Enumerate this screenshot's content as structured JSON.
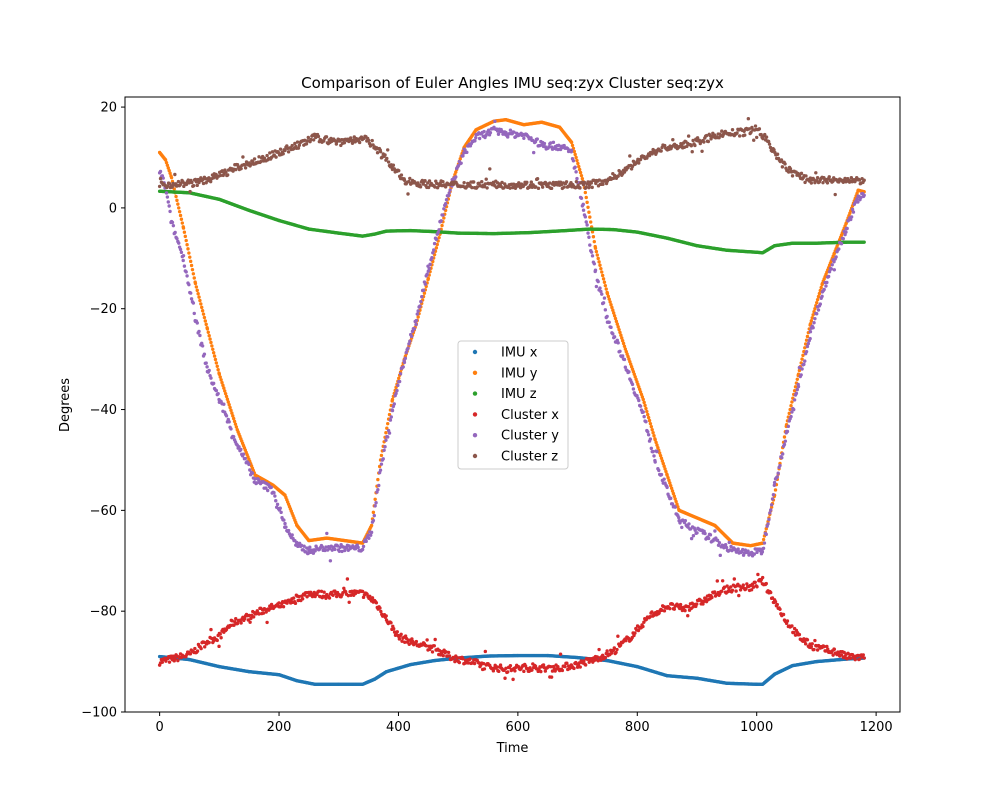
{
  "chart_data": {
    "type": "scatter",
    "title": "Comparison of Euler Angles IMU seq:zyx Cluster seq:zyx",
    "xlabel": "Time",
    "ylabel": "Degrees",
    "xlim": [
      -58,
      1240
    ],
    "ylim": [
      -100,
      22
    ],
    "xticks": [
      0,
      200,
      400,
      600,
      800,
      1000,
      1200
    ],
    "yticks": [
      20,
      0,
      -20,
      -40,
      -60,
      -80,
      -100
    ],
    "grid": false,
    "legend": "center",
    "series": [
      {
        "name": "IMU x",
        "color": "#1f77b4",
        "points": [
          [
            0,
            -89
          ],
          [
            50,
            -89.6
          ],
          [
            100,
            -91
          ],
          [
            150,
            -92
          ],
          [
            200,
            -92.6
          ],
          [
            230,
            -93.8
          ],
          [
            260,
            -94.5
          ],
          [
            300,
            -94.5
          ],
          [
            340,
            -94.5
          ],
          [
            360,
            -93.5
          ],
          [
            380,
            -92
          ],
          [
            420,
            -90.6
          ],
          [
            460,
            -89.8
          ],
          [
            500,
            -89.3
          ],
          [
            550,
            -88.9
          ],
          [
            600,
            -88.8
          ],
          [
            650,
            -88.8
          ],
          [
            700,
            -89.2
          ],
          [
            750,
            -89.8
          ],
          [
            800,
            -91
          ],
          [
            850,
            -92.8
          ],
          [
            900,
            -93.3
          ],
          [
            950,
            -94.3
          ],
          [
            1000,
            -94.5
          ],
          [
            1010,
            -94.5
          ],
          [
            1030,
            -92.5
          ],
          [
            1060,
            -90.8
          ],
          [
            1100,
            -90
          ],
          [
            1150,
            -89.5
          ],
          [
            1180,
            -89.3
          ]
        ]
      },
      {
        "name": "IMU y",
        "color": "#ff7f0e",
        "points": [
          [
            0,
            11
          ],
          [
            10,
            9.5
          ],
          [
            20,
            6
          ],
          [
            40,
            -4
          ],
          [
            60,
            -15
          ],
          [
            80,
            -24
          ],
          [
            100,
            -33
          ],
          [
            130,
            -44
          ],
          [
            160,
            -53
          ],
          [
            190,
            -55
          ],
          [
            210,
            -57
          ],
          [
            230,
            -63
          ],
          [
            250,
            -66
          ],
          [
            280,
            -65.5
          ],
          [
            310,
            -66
          ],
          [
            340,
            -66.5
          ],
          [
            355,
            -63
          ],
          [
            370,
            -50
          ],
          [
            390,
            -38
          ],
          [
            410,
            -30
          ],
          [
            430,
            -23
          ],
          [
            450,
            -14
          ],
          [
            470,
            -5
          ],
          [
            490,
            5
          ],
          [
            510,
            12
          ],
          [
            530,
            15.5
          ],
          [
            560,
            17.2
          ],
          [
            580,
            17.5
          ],
          [
            610,
            16.5
          ],
          [
            640,
            17
          ],
          [
            670,
            16
          ],
          [
            690,
            13
          ],
          [
            710,
            5
          ],
          [
            730,
            -8
          ],
          [
            750,
            -17
          ],
          [
            780,
            -28
          ],
          [
            810,
            -38
          ],
          [
            830,
            -46
          ],
          [
            850,
            -53
          ],
          [
            870,
            -60
          ],
          [
            900,
            -61.5
          ],
          [
            930,
            -63
          ],
          [
            960,
            -66.5
          ],
          [
            990,
            -67
          ],
          [
            1010,
            -66.5
          ],
          [
            1030,
            -57
          ],
          [
            1050,
            -43
          ],
          [
            1070,
            -33
          ],
          [
            1090,
            -23
          ],
          [
            1110,
            -15
          ],
          [
            1130,
            -9
          ],
          [
            1150,
            -3
          ],
          [
            1170,
            3.5
          ],
          [
            1180,
            3.2
          ]
        ]
      },
      {
        "name": "IMU z",
        "color": "#2ca02c",
        "points": [
          [
            0,
            3.3
          ],
          [
            50,
            3
          ],
          [
            100,
            1.7
          ],
          [
            150,
            -0.5
          ],
          [
            200,
            -2.5
          ],
          [
            250,
            -4.2
          ],
          [
            300,
            -5
          ],
          [
            340,
            -5.6
          ],
          [
            360,
            -5.2
          ],
          [
            380,
            -4.6
          ],
          [
            420,
            -4.5
          ],
          [
            460,
            -4.7
          ],
          [
            500,
            -5
          ],
          [
            560,
            -5.1
          ],
          [
            620,
            -4.9
          ],
          [
            680,
            -4.5
          ],
          [
            720,
            -4.2
          ],
          [
            760,
            -4.3
          ],
          [
            800,
            -4.8
          ],
          [
            850,
            -6
          ],
          [
            900,
            -7.5
          ],
          [
            950,
            -8.4
          ],
          [
            1000,
            -8.8
          ],
          [
            1010,
            -8.9
          ],
          [
            1030,
            -7.5
          ],
          [
            1060,
            -7
          ],
          [
            1100,
            -7
          ],
          [
            1150,
            -6.8
          ],
          [
            1180,
            -6.8
          ]
        ]
      },
      {
        "name": "Cluster x",
        "color": "#d62728",
        "points": [
          [
            0,
            -90
          ],
          [
            20,
            -89.5
          ],
          [
            50,
            -88.6
          ],
          [
            80,
            -86
          ],
          [
            100,
            -85
          ],
          [
            120,
            -82.5
          ],
          [
            150,
            -81
          ],
          [
            180,
            -79.5
          ],
          [
            200,
            -79
          ],
          [
            220,
            -78.2
          ],
          [
            250,
            -76.4
          ],
          [
            280,
            -76.8
          ],
          [
            310,
            -76.5
          ],
          [
            340,
            -76.5
          ],
          [
            360,
            -78
          ],
          [
            380,
            -81.5
          ],
          [
            400,
            -85
          ],
          [
            430,
            -86.5
          ],
          [
            460,
            -87.5
          ],
          [
            490,
            -89.2
          ],
          [
            520,
            -90
          ],
          [
            550,
            -91
          ],
          [
            580,
            -91.5
          ],
          [
            610,
            -91.2
          ],
          [
            640,
            -91.3
          ],
          [
            670,
            -91.2
          ],
          [
            700,
            -90.6
          ],
          [
            730,
            -89.5
          ],
          [
            760,
            -88
          ],
          [
            790,
            -85
          ],
          [
            820,
            -81
          ],
          [
            850,
            -79
          ],
          [
            880,
            -79.5
          ],
          [
            910,
            -78
          ],
          [
            940,
            -76
          ],
          [
            970,
            -75.2
          ],
          [
            990,
            -75.3
          ],
          [
            1010,
            -74
          ],
          [
            1030,
            -78
          ],
          [
            1050,
            -82
          ],
          [
            1070,
            -85
          ],
          [
            1090,
            -86.8
          ],
          [
            1110,
            -87.5
          ],
          [
            1130,
            -88
          ],
          [
            1150,
            -89
          ],
          [
            1180,
            -89.3
          ]
        ]
      },
      {
        "name": "Cluster y",
        "color": "#9467bd",
        "points": [
          [
            0,
            7.5
          ],
          [
            10,
            4
          ],
          [
            20,
            -3
          ],
          [
            40,
            -10
          ],
          [
            60,
            -22
          ],
          [
            80,
            -32
          ],
          [
            100,
            -38
          ],
          [
            130,
            -47
          ],
          [
            160,
            -54
          ],
          [
            190,
            -56
          ],
          [
            210,
            -63
          ],
          [
            230,
            -67
          ],
          [
            250,
            -68
          ],
          [
            280,
            -67.3
          ],
          [
            310,
            -67.5
          ],
          [
            340,
            -67.5
          ],
          [
            355,
            -64
          ],
          [
            370,
            -52
          ],
          [
            390,
            -40
          ],
          [
            410,
            -30
          ],
          [
            430,
            -22
          ],
          [
            450,
            -12
          ],
          [
            470,
            -3
          ],
          [
            490,
            5
          ],
          [
            510,
            11
          ],
          [
            530,
            14
          ],
          [
            560,
            15.3
          ],
          [
            580,
            14.8
          ],
          [
            610,
            14.5
          ],
          [
            640,
            12.5
          ],
          [
            670,
            12.2
          ],
          [
            690,
            11
          ],
          [
            710,
            0
          ],
          [
            730,
            -13
          ],
          [
            750,
            -22
          ],
          [
            780,
            -31
          ],
          [
            810,
            -41
          ],
          [
            830,
            -50
          ],
          [
            850,
            -56
          ],
          [
            870,
            -62
          ],
          [
            900,
            -64
          ],
          [
            930,
            -66
          ],
          [
            960,
            -68
          ],
          [
            990,
            -68.5
          ],
          [
            1010,
            -68
          ],
          [
            1030,
            -55
          ],
          [
            1050,
            -45
          ],
          [
            1070,
            -35
          ],
          [
            1090,
            -25
          ],
          [
            1110,
            -17
          ],
          [
            1130,
            -10
          ],
          [
            1150,
            -4
          ],
          [
            1170,
            2
          ],
          [
            1180,
            2.5
          ]
        ]
      },
      {
        "name": "Cluster z",
        "color": "#8c564b",
        "points": [
          [
            0,
            4.5
          ],
          [
            30,
            4.8
          ],
          [
            60,
            5
          ],
          [
            90,
            6
          ],
          [
            120,
            7.5
          ],
          [
            150,
            8.8
          ],
          [
            180,
            10
          ],
          [
            210,
            11.5
          ],
          [
            240,
            12.8
          ],
          [
            260,
            14
          ],
          [
            290,
            13.2
          ],
          [
            320,
            13.5
          ],
          [
            350,
            13.5
          ],
          [
            370,
            11
          ],
          [
            390,
            8
          ],
          [
            410,
            5.5
          ],
          [
            440,
            4.8
          ],
          [
            480,
            4.6
          ],
          [
            520,
            4.6
          ],
          [
            560,
            4.6
          ],
          [
            600,
            4.6
          ],
          [
            640,
            4.5
          ],
          [
            680,
            4.5
          ],
          [
            720,
            4.6
          ],
          [
            750,
            5.5
          ],
          [
            780,
            7.5
          ],
          [
            810,
            10
          ],
          [
            840,
            11.8
          ],
          [
            880,
            12.5
          ],
          [
            910,
            13.5
          ],
          [
            940,
            14.7
          ],
          [
            980,
            15
          ],
          [
            1000,
            15.8
          ],
          [
            1020,
            13
          ],
          [
            1040,
            9
          ],
          [
            1060,
            7
          ],
          [
            1090,
            5.5
          ],
          [
            1130,
            5.5
          ],
          [
            1160,
            5.3
          ],
          [
            1180,
            5.5
          ]
        ]
      }
    ]
  }
}
